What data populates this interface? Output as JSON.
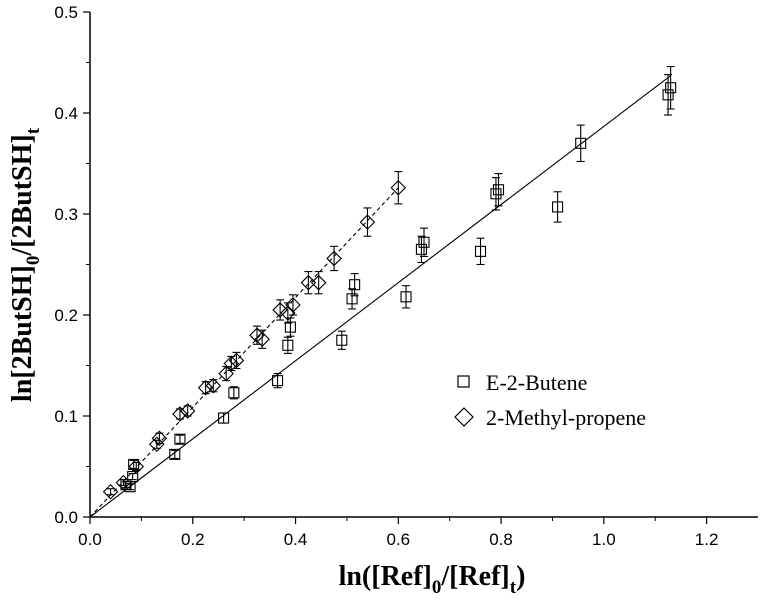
{
  "chart_data": {
    "type": "scatter",
    "xlabel": {
      "prefix": "ln([Ref]",
      "sub1": "0",
      "mid": "/[Ref]",
      "sub2": "t",
      "suffix": ")"
    },
    "ylabel": {
      "prefix": "ln[2ButSH]",
      "sub1": "0",
      "mid": "/[2ButSH]",
      "sub2": "t",
      "suffix": ""
    },
    "xlim": [
      0.0,
      1.3
    ],
    "ylim": [
      0.0,
      0.5
    ],
    "xticks": [
      "0.0",
      "0.2",
      "0.4",
      "0.6",
      "0.8",
      "1.0",
      "1.2"
    ],
    "yticks": [
      "0.0",
      "0.1",
      "0.2",
      "0.3",
      "0.4",
      "0.5"
    ],
    "legend_position": "center-right",
    "series": [
      {
        "name": "E-2-Butene",
        "marker": "square",
        "fit_line": {
          "style": "solid",
          "x": [
            0.0,
            1.13
          ],
          "y": [
            0.0,
            0.437
          ]
        },
        "points": [
          {
            "x": 0.07,
            "y": 0.032,
            "err": 0.003
          },
          {
            "x": 0.078,
            "y": 0.03,
            "err": 0.003
          },
          {
            "x": 0.083,
            "y": 0.04,
            "err": 0.003
          },
          {
            "x": 0.085,
            "y": 0.052,
            "err": 0.004
          },
          {
            "x": 0.165,
            "y": 0.062,
            "err": 0.004
          },
          {
            "x": 0.175,
            "y": 0.077,
            "err": 0.004
          },
          {
            "x": 0.26,
            "y": 0.098,
            "err": 0.005
          },
          {
            "x": 0.28,
            "y": 0.123,
            "err": 0.006
          },
          {
            "x": 0.365,
            "y": 0.135,
            "err": 0.007
          },
          {
            "x": 0.385,
            "y": 0.17,
            "err": 0.008
          },
          {
            "x": 0.39,
            "y": 0.188,
            "err": 0.009
          },
          {
            "x": 0.49,
            "y": 0.175,
            "err": 0.009
          },
          {
            "x": 0.51,
            "y": 0.216,
            "err": 0.01
          },
          {
            "x": 0.515,
            "y": 0.23,
            "err": 0.011
          },
          {
            "x": 0.615,
            "y": 0.218,
            "err": 0.011
          },
          {
            "x": 0.645,
            "y": 0.265,
            "err": 0.013
          },
          {
            "x": 0.65,
            "y": 0.272,
            "err": 0.014
          },
          {
            "x": 0.76,
            "y": 0.263,
            "err": 0.013
          },
          {
            "x": 0.79,
            "y": 0.32,
            "err": 0.016
          },
          {
            "x": 0.795,
            "y": 0.324,
            "err": 0.016
          },
          {
            "x": 0.91,
            "y": 0.307,
            "err": 0.015
          },
          {
            "x": 0.955,
            "y": 0.37,
            "err": 0.018
          },
          {
            "x": 1.125,
            "y": 0.418,
            "err": 0.02
          },
          {
            "x": 1.13,
            "y": 0.425,
            "err": 0.021
          }
        ]
      },
      {
        "name": "2-Methyl-propene",
        "marker": "diamond",
        "fit_line": {
          "style": "dashed",
          "x": [
            0.0,
            0.6
          ],
          "y": [
            0.0,
            0.326
          ]
        },
        "points": [
          {
            "x": 0.04,
            "y": 0.025,
            "err": 0.003
          },
          {
            "x": 0.065,
            "y": 0.034,
            "err": 0.003
          },
          {
            "x": 0.09,
            "y": 0.05,
            "err": 0.004
          },
          {
            "x": 0.13,
            "y": 0.072,
            "err": 0.004
          },
          {
            "x": 0.135,
            "y": 0.078,
            "err": 0.005
          },
          {
            "x": 0.175,
            "y": 0.102,
            "err": 0.005
          },
          {
            "x": 0.19,
            "y": 0.105,
            "err": 0.005
          },
          {
            "x": 0.225,
            "y": 0.128,
            "err": 0.006
          },
          {
            "x": 0.24,
            "y": 0.13,
            "err": 0.006
          },
          {
            "x": 0.265,
            "y": 0.142,
            "err": 0.007
          },
          {
            "x": 0.275,
            "y": 0.152,
            "err": 0.007
          },
          {
            "x": 0.285,
            "y": 0.155,
            "err": 0.008
          },
          {
            "x": 0.325,
            "y": 0.18,
            "err": 0.009
          },
          {
            "x": 0.335,
            "y": 0.176,
            "err": 0.009
          },
          {
            "x": 0.37,
            "y": 0.205,
            "err": 0.01
          },
          {
            "x": 0.385,
            "y": 0.202,
            "err": 0.01
          },
          {
            "x": 0.395,
            "y": 0.21,
            "err": 0.01
          },
          {
            "x": 0.425,
            "y": 0.232,
            "err": 0.011
          },
          {
            "x": 0.445,
            "y": 0.232,
            "err": 0.011
          },
          {
            "x": 0.475,
            "y": 0.256,
            "err": 0.012
          },
          {
            "x": 0.54,
            "y": 0.292,
            "err": 0.014
          },
          {
            "x": 0.6,
            "y": 0.326,
            "err": 0.016
          }
        ]
      }
    ]
  }
}
